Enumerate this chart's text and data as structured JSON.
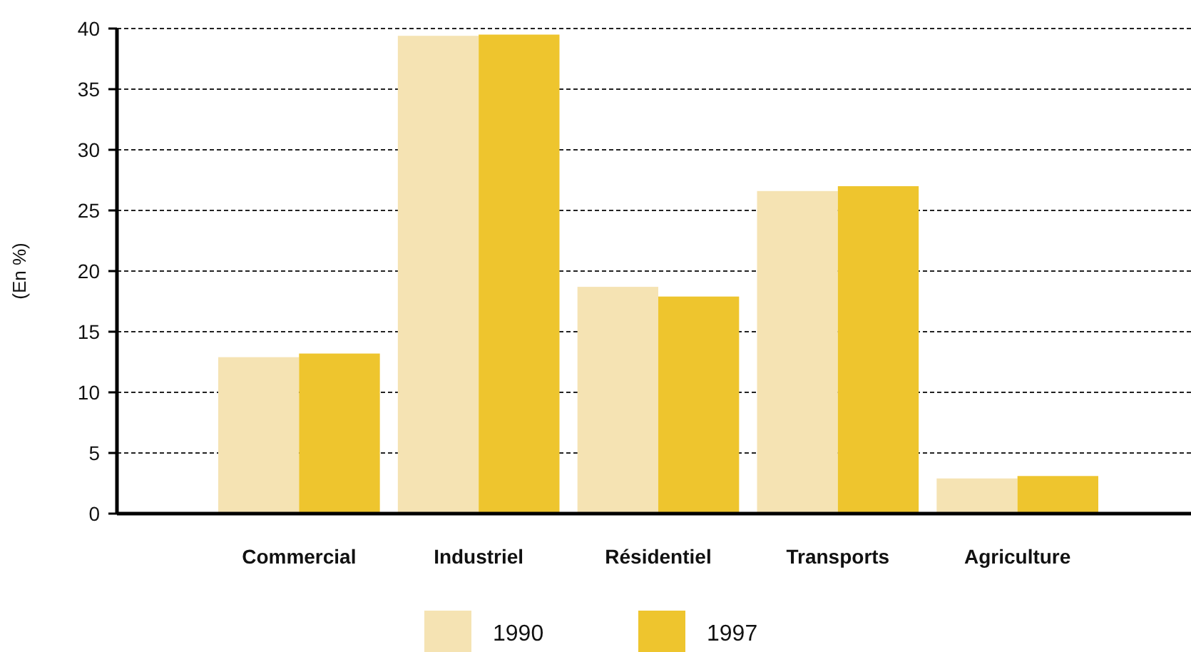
{
  "chart_data": {
    "type": "bar",
    "ylabel": "(En %)",
    "categories": [
      "Commercial",
      "Industriel",
      "Résidentiel",
      "Transports",
      "Agriculture"
    ],
    "series": [
      {
        "name": "1990",
        "color": "#f5e3b3",
        "values": [
          12.9,
          39.4,
          18.7,
          26.6,
          2.9
        ]
      },
      {
        "name": "1997",
        "color": "#eec52e",
        "values": [
          13.2,
          39.5,
          17.9,
          27.0,
          3.1
        ]
      }
    ],
    "ylim": [
      0,
      40
    ],
    "yticks": [
      0,
      5,
      10,
      15,
      20,
      25,
      30,
      35,
      40
    ],
    "grid": "y",
    "legend": "bottom"
  }
}
